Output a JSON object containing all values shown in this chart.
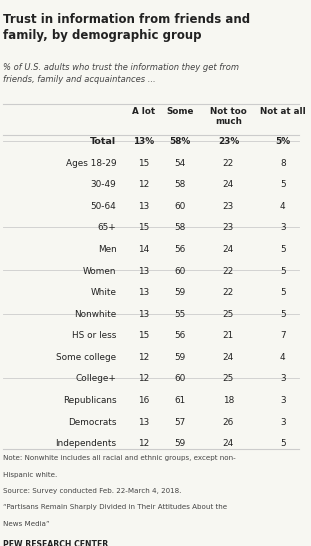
{
  "title": "Trust in information from friends and\nfamily, by demographic group",
  "subtitle": "% of U.S. adults who trust the information they get from\nfriends, family and acquaintances ...",
  "col_headers": [
    "A lot",
    "Some",
    "Not too\nmuch",
    "Not at all"
  ],
  "rows": [
    {
      "label": "Total",
      "values": [
        "13%",
        "58%",
        "23%",
        "5%"
      ],
      "bold": true,
      "separator_before": false
    },
    {
      "label": "Ages 18-29",
      "values": [
        "15",
        "54",
        "22",
        "8"
      ],
      "bold": false,
      "separator_before": true
    },
    {
      "label": "30-49",
      "values": [
        "12",
        "58",
        "24",
        "5"
      ],
      "bold": false,
      "separator_before": false
    },
    {
      "label": "50-64",
      "values": [
        "13",
        "60",
        "23",
        "4"
      ],
      "bold": false,
      "separator_before": false
    },
    {
      "label": "65+",
      "values": [
        "15",
        "58",
        "23",
        "3"
      ],
      "bold": false,
      "separator_before": false
    },
    {
      "label": "Men",
      "values": [
        "14",
        "56",
        "24",
        "5"
      ],
      "bold": false,
      "separator_before": true
    },
    {
      "label": "Women",
      "values": [
        "13",
        "60",
        "22",
        "5"
      ],
      "bold": false,
      "separator_before": false
    },
    {
      "label": "White",
      "values": [
        "13",
        "59",
        "22",
        "5"
      ],
      "bold": false,
      "separator_before": true
    },
    {
      "label": "Nonwhite",
      "values": [
        "13",
        "55",
        "25",
        "5"
      ],
      "bold": false,
      "separator_before": false
    },
    {
      "label": "HS or less",
      "values": [
        "15",
        "56",
        "21",
        "7"
      ],
      "bold": false,
      "separator_before": true
    },
    {
      "label": "Some college",
      "values": [
        "12",
        "59",
        "24",
        "4"
      ],
      "bold": false,
      "separator_before": false
    },
    {
      "label": "College+",
      "values": [
        "12",
        "60",
        "25",
        "3"
      ],
      "bold": false,
      "separator_before": false
    },
    {
      "label": "Republicans",
      "values": [
        "16",
        "61",
        "18",
        "3"
      ],
      "bold": false,
      "separator_before": true
    },
    {
      "label": "Democrats",
      "values": [
        "13",
        "57",
        "26",
        "3"
      ],
      "bold": false,
      "separator_before": false
    },
    {
      "label": "Independents",
      "values": [
        "12",
        "59",
        "24",
        "5"
      ],
      "bold": false,
      "separator_before": false
    }
  ],
  "note_lines": [
    "Note: Nonwhite includes all racial and ethnic groups, except non-",
    "Hispanic white.",
    "Source: Survey conducted Feb. 22-March 4, 2018.",
    "“Partisans Remain Sharply Divided in Their Attitudes About the",
    "News Media”"
  ],
  "footer": "PEW RESEARCH CENTER",
  "bg_color": "#f7f7f2",
  "text_color": "#222222",
  "separator_color": "#cccccc"
}
